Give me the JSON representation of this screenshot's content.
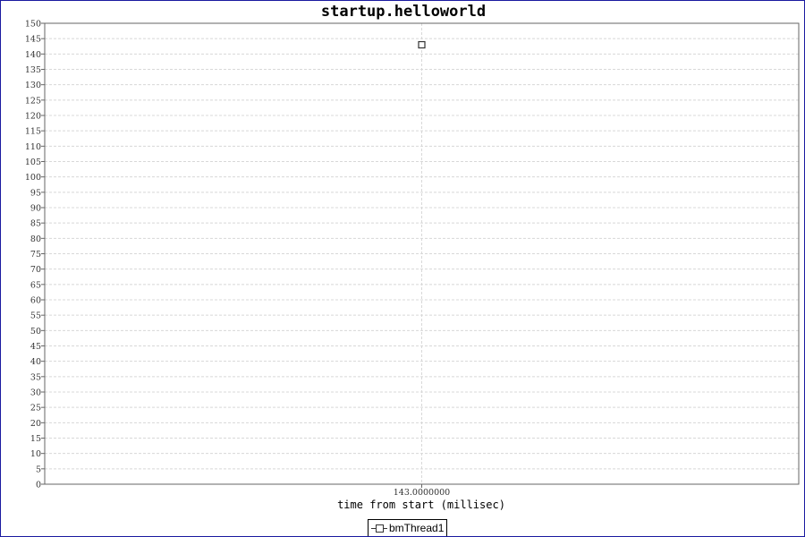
{
  "chart_data": {
    "type": "scatter",
    "title": "startup.helloworld",
    "xlabel": "time from start (millisec)",
    "ylabel": "",
    "ylim": [
      0,
      150
    ],
    "y_tick_step": 5,
    "x_tick_labels": [
      "143.0000000"
    ],
    "grid": true,
    "legend_position": "bottom-center",
    "series": [
      {
        "name": "bmThread1",
        "marker": "square",
        "color": "#333333",
        "points": [
          {
            "x": 143.0,
            "y": 143
          }
        ]
      }
    ]
  }
}
